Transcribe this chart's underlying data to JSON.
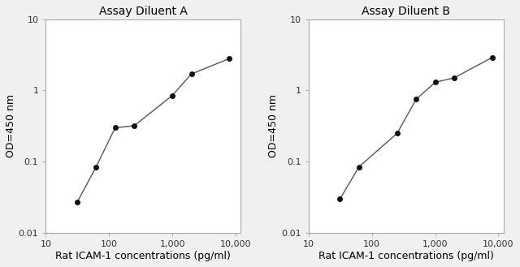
{
  "panel_A": {
    "title": "Assay Diluent A",
    "x": [
      31.25,
      62.5,
      125,
      250,
      1000,
      2000,
      8000
    ],
    "y": [
      0.027,
      0.085,
      0.3,
      0.32,
      0.85,
      1.7,
      2.8
    ]
  },
  "panel_B": {
    "title": "Assay Diluent B",
    "x": [
      31.25,
      62.5,
      250,
      500,
      1000,
      2000,
      8000
    ],
    "y": [
      0.03,
      0.085,
      0.25,
      0.75,
      1.3,
      1.5,
      2.9
    ]
  },
  "xlabel": "Rat ICAM-1 concentrations (pg/ml)",
  "ylabel": "OD=450 nm",
  "xlim": [
    15,
    12000
  ],
  "ylim": [
    0.01,
    10
  ],
  "xticks": [
    10,
    100,
    1000,
    10000
  ],
  "xtick_labels": [
    "10",
    "100",
    "1,000",
    "10,000"
  ],
  "yticks": [
    0.01,
    0.1,
    1,
    10
  ],
  "ytick_labels": [
    "0.01",
    "0.1",
    "1",
    "10"
  ],
  "line_color": "#555555",
  "marker": "o",
  "marker_color": "#111111",
  "marker_size": 4,
  "line_width": 1.0,
  "title_fontsize": 10,
  "label_fontsize": 9,
  "tick_fontsize": 8,
  "bg_color": "#f0f0f0"
}
